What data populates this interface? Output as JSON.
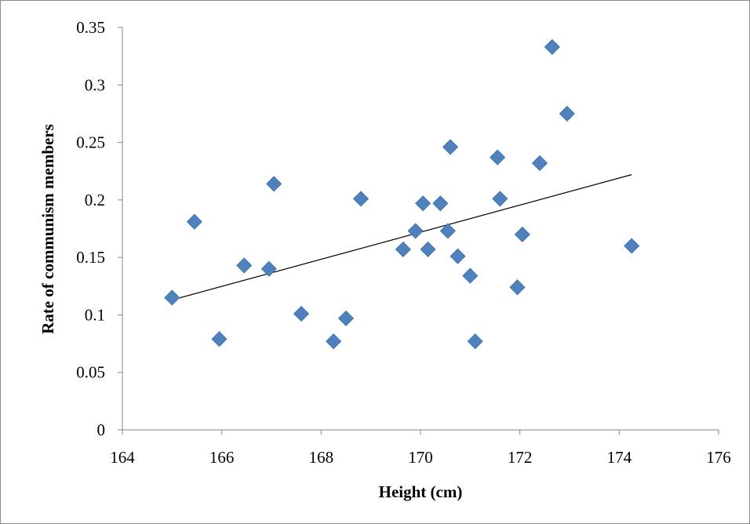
{
  "chart_data": {
    "type": "scatter",
    "title": "",
    "xlabel": "Height (cm)",
    "ylabel": "Rate of communism members",
    "xlim": [
      164,
      176
    ],
    "ylim": [
      0,
      0.35
    ],
    "x_ticks": [
      "164",
      "166",
      "168",
      "170",
      "172",
      "174",
      "176"
    ],
    "y_ticks": [
      "0",
      "0.05",
      "0.1",
      "0.15",
      "0.2",
      "0.25",
      "0.3",
      "0.35"
    ],
    "grid": false,
    "legend": "none",
    "marker_color": "#4F81BD",
    "trendline_color": "#000000",
    "points": [
      {
        "x": 165.0,
        "y": 0.115
      },
      {
        "x": 165.45,
        "y": 0.181
      },
      {
        "x": 165.95,
        "y": 0.079
      },
      {
        "x": 166.45,
        "y": 0.143
      },
      {
        "x": 166.95,
        "y": 0.14
      },
      {
        "x": 167.05,
        "y": 0.214
      },
      {
        "x": 167.6,
        "y": 0.101
      },
      {
        "x": 168.25,
        "y": 0.077
      },
      {
        "x": 168.5,
        "y": 0.097
      },
      {
        "x": 168.8,
        "y": 0.201
      },
      {
        "x": 169.65,
        "y": 0.157
      },
      {
        "x": 169.9,
        "y": 0.173
      },
      {
        "x": 170.05,
        "y": 0.197
      },
      {
        "x": 170.15,
        "y": 0.157
      },
      {
        "x": 170.4,
        "y": 0.197
      },
      {
        "x": 170.55,
        "y": 0.173
      },
      {
        "x": 170.6,
        "y": 0.246
      },
      {
        "x": 170.75,
        "y": 0.151
      },
      {
        "x": 171.0,
        "y": 0.134
      },
      {
        "x": 171.1,
        "y": 0.077
      },
      {
        "x": 171.55,
        "y": 0.237
      },
      {
        "x": 171.6,
        "y": 0.201
      },
      {
        "x": 171.95,
        "y": 0.124
      },
      {
        "x": 172.05,
        "y": 0.17
      },
      {
        "x": 172.4,
        "y": 0.232
      },
      {
        "x": 172.65,
        "y": 0.333
      },
      {
        "x": 172.95,
        "y": 0.275
      },
      {
        "x": 174.25,
        "y": 0.16
      }
    ],
    "trendline": {
      "x": [
        165.0,
        174.25
      ],
      "y": [
        0.113,
        0.222
      ]
    }
  }
}
